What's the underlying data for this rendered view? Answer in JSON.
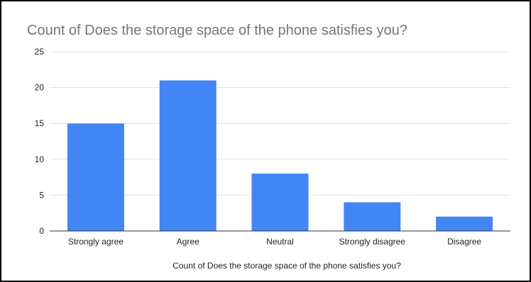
{
  "chart_data": {
    "type": "bar",
    "title": "Count of Does the storage space of the phone satisfies you?",
    "xlabel": "Count of Does the storage space of the phone satisfies you?",
    "ylabel": "",
    "categories": [
      "Strongly agree",
      "Agree",
      "Neutral",
      "Strongly disagree",
      "Disagree"
    ],
    "values": [
      15,
      21,
      8,
      4,
      2
    ],
    "ylim": [
      0,
      25
    ],
    "yticks": [
      0,
      5,
      10,
      15,
      20,
      25
    ],
    "grid": true,
    "legend": "none",
    "colors": {
      "bar": "#4285f4",
      "grid": "#e0e0e0",
      "axis": "#333333",
      "title": "#757575"
    }
  }
}
